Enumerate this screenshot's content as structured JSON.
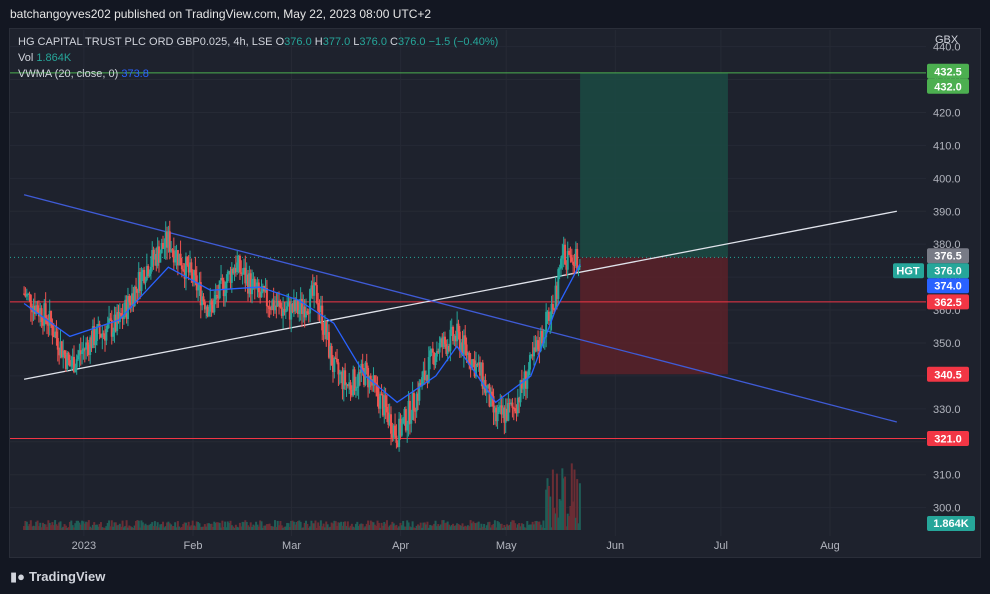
{
  "header": {
    "publisher_text": "batchangoyves202 published on TradingView.com, May 22, 2023 08:00 UTC+2"
  },
  "legend": {
    "symbol": "HG CAPITAL TRUST PLC ORD GBP0.025, 4h, LSE",
    "o_label": "O",
    "o_value": "376.0",
    "h_label": "H",
    "h_value": "377.0",
    "l_label": "L",
    "l_value": "376.0",
    "c_label": "C",
    "c_value": "376.0",
    "change": "−1.5 (−0.40%)",
    "vol_label": "Vol",
    "vol_value": "1.864K",
    "vwma_label": "VWMA (20, close, 0)",
    "vwma_value": "373.8"
  },
  "currency": "GBX",
  "footer": {
    "brand": "TradingView"
  },
  "colors": {
    "background": "#1e222d",
    "up": "#26a69a",
    "down": "#ef5350",
    "vwma": "#2962ff",
    "trend_white": "#e0e3eb",
    "trend_blue": "#3f5bd6",
    "level_red": "#f23645",
    "level_green": "#4caf50",
    "profit_zone": "#1b4a43",
    "loss_zone": "#5a2129"
  },
  "chart_data": {
    "type": "candlestick",
    "symbol": "HGT",
    "interval": "4h",
    "ylim": [
      292,
      442
    ],
    "y_ticks": [
      "300.0",
      "310.0",
      "320.0",
      "330.0",
      "340.0",
      "350.0",
      "360.0",
      "370.0",
      "380.0",
      "390.0",
      "400.0",
      "410.0",
      "420.0",
      "430.0",
      "440.0"
    ],
    "x_ticks": [
      "2023",
      "Feb",
      "Mar",
      "Apr",
      "May",
      "Jun",
      "Jul",
      "Aug"
    ],
    "grid": true,
    "price_labels": [
      {
        "value": 432.5,
        "text": "432.5",
        "color": "#4caf50"
      },
      {
        "value": 432.0,
        "text": "432.0",
        "color": "#4caf50"
      },
      {
        "value": 376.5,
        "text": "376.5",
        "color": "#787b86"
      },
      {
        "value": 376.0,
        "text": "376.0",
        "color": "#26a69a",
        "tag": "HGT"
      },
      {
        "value": 374.0,
        "text": "374.0",
        "color": "#2962ff"
      },
      {
        "value": 362.5,
        "text": "362.5",
        "color": "#f23645"
      },
      {
        "value": 340.5,
        "text": "340.5",
        "color": "#f23645"
      },
      {
        "value": 321.0,
        "text": "321.0",
        "color": "#f23645"
      }
    ],
    "volume_label": {
      "text": "1.864K",
      "color": "#26a69a"
    },
    "horizontal_levels": [
      {
        "value": 432.0,
        "color": "#4caf50"
      },
      {
        "value": 362.5,
        "color": "#f23645"
      },
      {
        "value": 321.0,
        "color": "#f23645"
      }
    ],
    "current_price": 376.0,
    "trendlines": [
      {
        "from": [
          "2022-12-15",
          339
        ],
        "to": [
          "2023-08-20",
          390
        ],
        "color": "#e0e3eb"
      },
      {
        "from": [
          "2022-12-15",
          395
        ],
        "to": [
          "2023-08-20",
          326
        ],
        "color": "#3f5bd6"
      }
    ],
    "position": {
      "entry": 376.0,
      "target": 432.0,
      "stop": 340.5,
      "start": "2023-05-22",
      "end": "2023-07-03"
    },
    "price_path": [
      [
        "2022-12-15",
        365
      ],
      [
        "2022-12-22",
        357
      ],
      [
        "2022-12-28",
        343
      ],
      [
        "2023-01-04",
        352
      ],
      [
        "2023-01-11",
        356
      ],
      [
        "2023-01-18",
        372
      ],
      [
        "2023-01-25",
        381
      ],
      [
        "2023-01-31",
        371
      ],
      [
        "2023-02-06",
        360
      ],
      [
        "2023-02-13",
        374
      ],
      [
        "2023-02-20",
        364
      ],
      [
        "2023-02-27",
        360
      ],
      [
        "2023-03-03",
        360
      ],
      [
        "2023-03-08",
        365
      ],
      [
        "2023-03-13",
        342
      ],
      [
        "2023-03-17",
        337
      ],
      [
        "2023-03-22",
        341
      ],
      [
        "2023-03-27",
        331
      ],
      [
        "2023-03-31",
        322
      ],
      [
        "2023-04-04",
        330
      ],
      [
        "2023-04-11",
        348
      ],
      [
        "2023-04-17",
        352
      ],
      [
        "2023-04-24",
        340
      ],
      [
        "2023-04-28",
        327
      ],
      [
        "2023-05-03",
        330
      ],
      [
        "2023-05-08",
        343
      ],
      [
        "2023-05-12",
        355
      ],
      [
        "2023-05-15",
        364
      ],
      [
        "2023-05-17",
        377
      ],
      [
        "2023-05-19",
        375
      ],
      [
        "2023-05-22",
        376
      ]
    ],
    "vwma_path": [
      [
        "2022-12-15",
        362
      ],
      [
        "2022-12-28",
        352
      ],
      [
        "2023-01-11",
        357
      ],
      [
        "2023-01-25",
        373
      ],
      [
        "2023-02-06",
        366
      ],
      [
        "2023-02-20",
        367
      ],
      [
        "2023-03-03",
        363
      ],
      [
        "2023-03-13",
        356
      ],
      [
        "2023-03-22",
        340
      ],
      [
        "2023-03-31",
        332
      ],
      [
        "2023-04-11",
        340
      ],
      [
        "2023-04-17",
        349
      ],
      [
        "2023-04-28",
        332
      ],
      [
        "2023-05-08",
        340
      ],
      [
        "2023-05-15",
        360
      ],
      [
        "2023-05-22",
        374
      ]
    ]
  }
}
